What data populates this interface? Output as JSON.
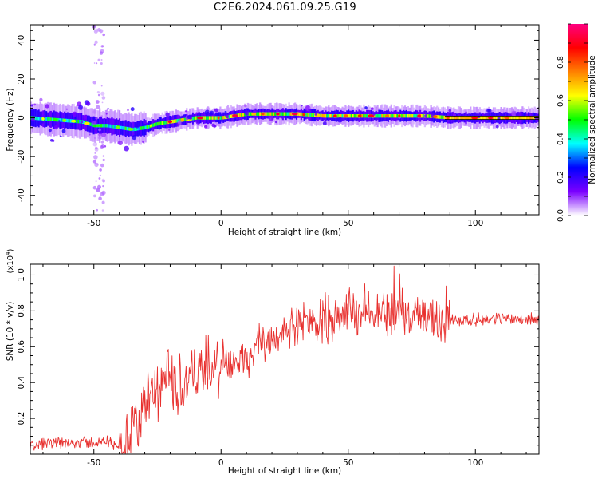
{
  "title": "C2E6.2024.061.09.25.G19",
  "chart_data": [
    {
      "type": "heatmap",
      "xlabel": "Height of straight line (km)",
      "ylabel": "Frequency (Hz)",
      "xlim": [
        -75,
        125
      ],
      "ylim": [
        -50,
        48
      ],
      "xticks": [
        -50,
        0,
        50,
        100
      ],
      "yticks": [
        -40,
        -20,
        0,
        20,
        40
      ],
      "colorbar": {
        "label": "Normalized spectral amplitude",
        "range": [
          0,
          1
        ],
        "ticks": [
          0.0,
          0.2,
          0.4,
          0.6,
          0.8
        ],
        "colors": [
          "#ffffff",
          "#7b00ff",
          "#0000ff",
          "#00ffff",
          "#00ff00",
          "#ffff00",
          "#ff8000",
          "#ff0000",
          "#ff0080"
        ]
      },
      "ridge": {
        "x": [
          -75,
          -65,
          -55,
          -50,
          -45,
          -40,
          -35,
          -30,
          -25,
          -20,
          -15,
          -10,
          -5,
          0,
          5,
          10,
          20,
          30,
          40,
          50,
          60,
          70,
          80,
          90,
          100,
          110,
          125
        ],
        "y": [
          0,
          -1,
          -2,
          -4,
          -4,
          -5,
          -6,
          -5,
          -3,
          -2,
          -1,
          0,
          0,
          0,
          1,
          2,
          2,
          2,
          1,
          1,
          1,
          1,
          1,
          0,
          0,
          0,
          0
        ]
      }
    },
    {
      "type": "line",
      "xlabel": "Height of straight line (km)",
      "ylabel": "SNR (10 * v/v)",
      "yscale_label": "(x10^4)",
      "xlim": [
        -75,
        125
      ],
      "ylim": [
        0.0,
        1.06
      ],
      "xticks": [
        -50,
        0,
        50,
        100
      ],
      "yticks": [
        0.2,
        0.4,
        0.6,
        0.8,
        1.0
      ],
      "color": "#e8302e",
      "envelope": {
        "x": [
          -75,
          -65,
          -55,
          -50,
          -45,
          -40,
          -35,
          -30,
          -25,
          -20,
          -15,
          -10,
          -5,
          0,
          5,
          10,
          15,
          20,
          30,
          40,
          50,
          60,
          70,
          80,
          90,
          100,
          110,
          125
        ],
        "y": [
          0.05,
          0.06,
          0.07,
          0.06,
          0.07,
          0.05,
          0.12,
          0.25,
          0.35,
          0.42,
          0.38,
          0.45,
          0.47,
          0.48,
          0.5,
          0.55,
          0.62,
          0.65,
          0.72,
          0.76,
          0.8,
          0.8,
          0.78,
          0.76,
          0.75,
          0.75,
          0.76,
          0.75
        ]
      },
      "peak": {
        "x": 68,
        "y": 1.05
      }
    }
  ]
}
